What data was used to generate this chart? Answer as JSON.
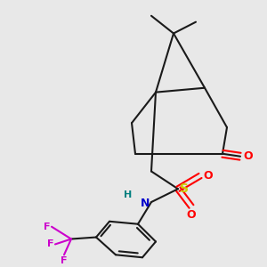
{
  "bg_color": "#e8e8e8",
  "bond_color": "#1a1a1a",
  "colors": {
    "O": "#ff0000",
    "S": "#cccc00",
    "N": "#0000cc",
    "H": "#008080",
    "F": "#cc00cc",
    "C": "#1a1a1a"
  },
  "lw": 1.5
}
